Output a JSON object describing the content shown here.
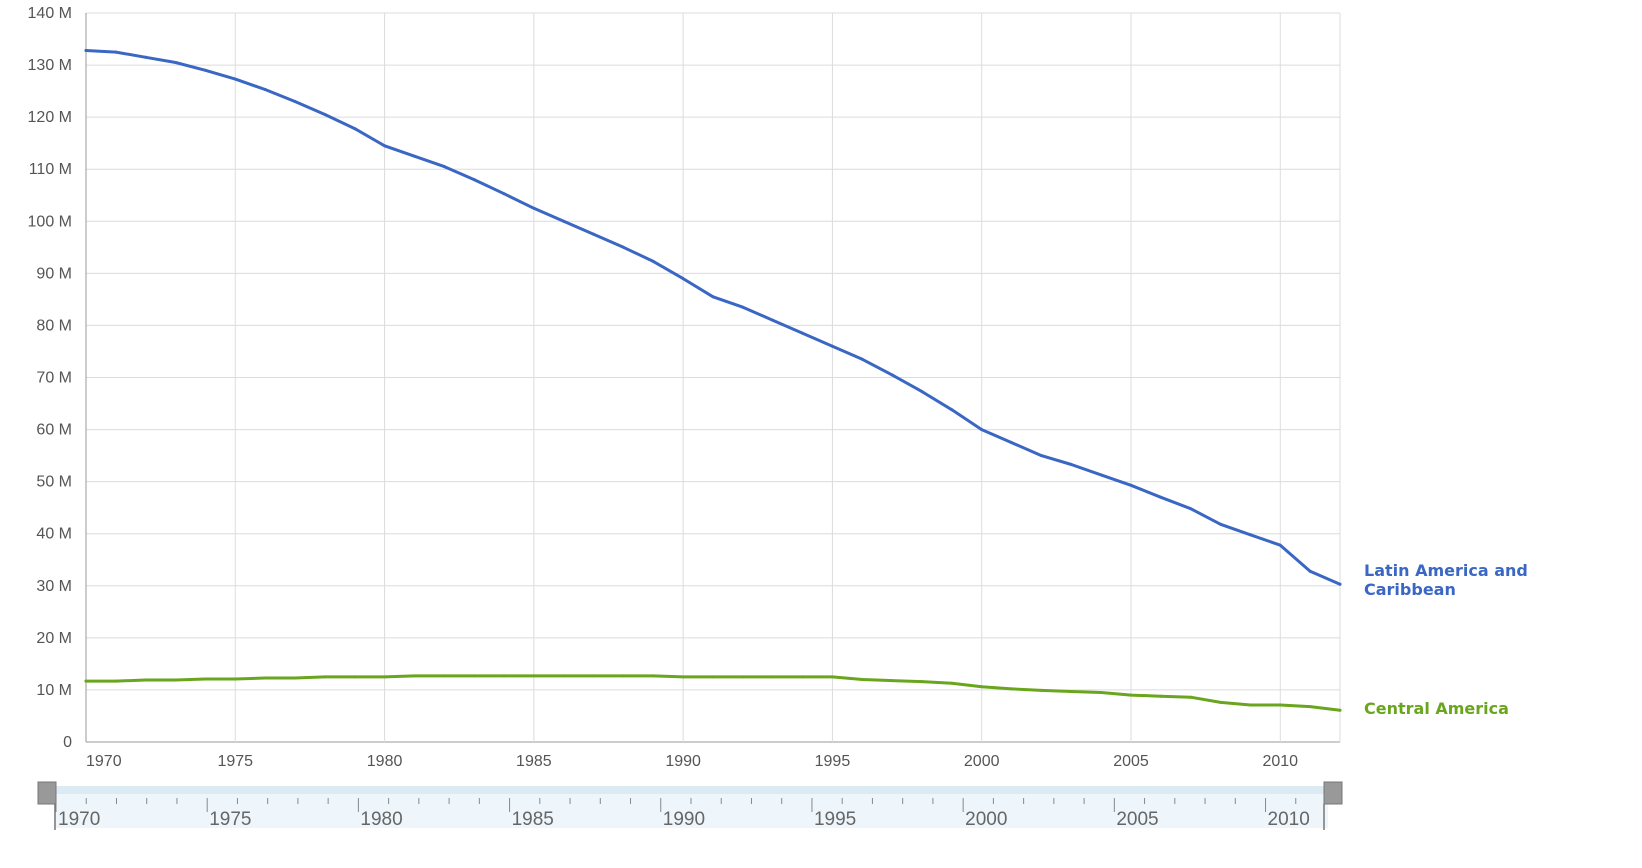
{
  "chart_data": {
    "type": "line",
    "x": [
      1970,
      1971,
      1972,
      1973,
      1974,
      1975,
      1976,
      1977,
      1978,
      1979,
      1980,
      1981,
      1982,
      1983,
      1984,
      1985,
      1986,
      1987,
      1988,
      1989,
      1990,
      1991,
      1992,
      1993,
      1994,
      1995,
      1996,
      1997,
      1998,
      1999,
      2000,
      2001,
      2002,
      2003,
      2004,
      2005,
      2006,
      2007,
      2008,
      2009,
      2010,
      2011,
      2012
    ],
    "series": [
      {
        "name": "Latin America and Caribbean",
        "color": "#3a66c4",
        "values": [
          132.8,
          132.5,
          131.5,
          130.5,
          129,
          127.3,
          125.3,
          123,
          120.5,
          117.8,
          114.5,
          112.5,
          110.5,
          108,
          105.3,
          102.5,
          100,
          97.5,
          95,
          92.3,
          89,
          85.5,
          83.5,
          81,
          78.5,
          76,
          73.5,
          70.5,
          67.3,
          63.8,
          60,
          57.5,
          55,
          53.3,
          51.3,
          49.3,
          47,
          44.8,
          41.8,
          39.8,
          37.8,
          32.8,
          30.3
        ]
      },
      {
        "name": "Central America",
        "color": "#6aa51e",
        "values": [
          11.7,
          11.7,
          11.9,
          11.9,
          12.1,
          12.1,
          12.3,
          12.3,
          12.5,
          12.5,
          12.5,
          12.7,
          12.7,
          12.7,
          12.7,
          12.7,
          12.7,
          12.7,
          12.7,
          12.7,
          12.5,
          12.5,
          12.5,
          12.5,
          12.5,
          12.5,
          12,
          11.8,
          11.6,
          11.3,
          10.6,
          10.2,
          9.9,
          9.7,
          9.5,
          9,
          8.8,
          8.6,
          7.6,
          7.1,
          7.1,
          6.8,
          6.1
        ]
      }
    ],
    "y_ticks": [
      "0",
      "10 M",
      "20 M",
      "30 M",
      "40 M",
      "50 M",
      "60 M",
      "70 M",
      "80 M",
      "90 M",
      "100 M",
      "110 M",
      "120 M",
      "130 M",
      "140 M"
    ],
    "x_ticks": [
      "1970",
      "1975",
      "1980",
      "1985",
      "1990",
      "1995",
      "2000",
      "2005",
      "2010"
    ],
    "ylim": [
      0,
      140
    ],
    "xlim": [
      1970,
      2012
    ],
    "grid": true,
    "legend": "inline-right-end-labels",
    "end_labels": [
      {
        "lines": [
          "Latin America and",
          "Caribbean"
        ],
        "color": "#3a66c4"
      },
      {
        "lines": [
          "Central America"
        ],
        "color": "#6aa51e"
      }
    ],
    "range_slider": {
      "ticks": [
        "1970",
        "1975",
        "1980",
        "1985",
        "1990",
        "1995",
        "2000",
        "2005",
        "2010"
      ],
      "range": [
        1970,
        2012
      ]
    }
  }
}
